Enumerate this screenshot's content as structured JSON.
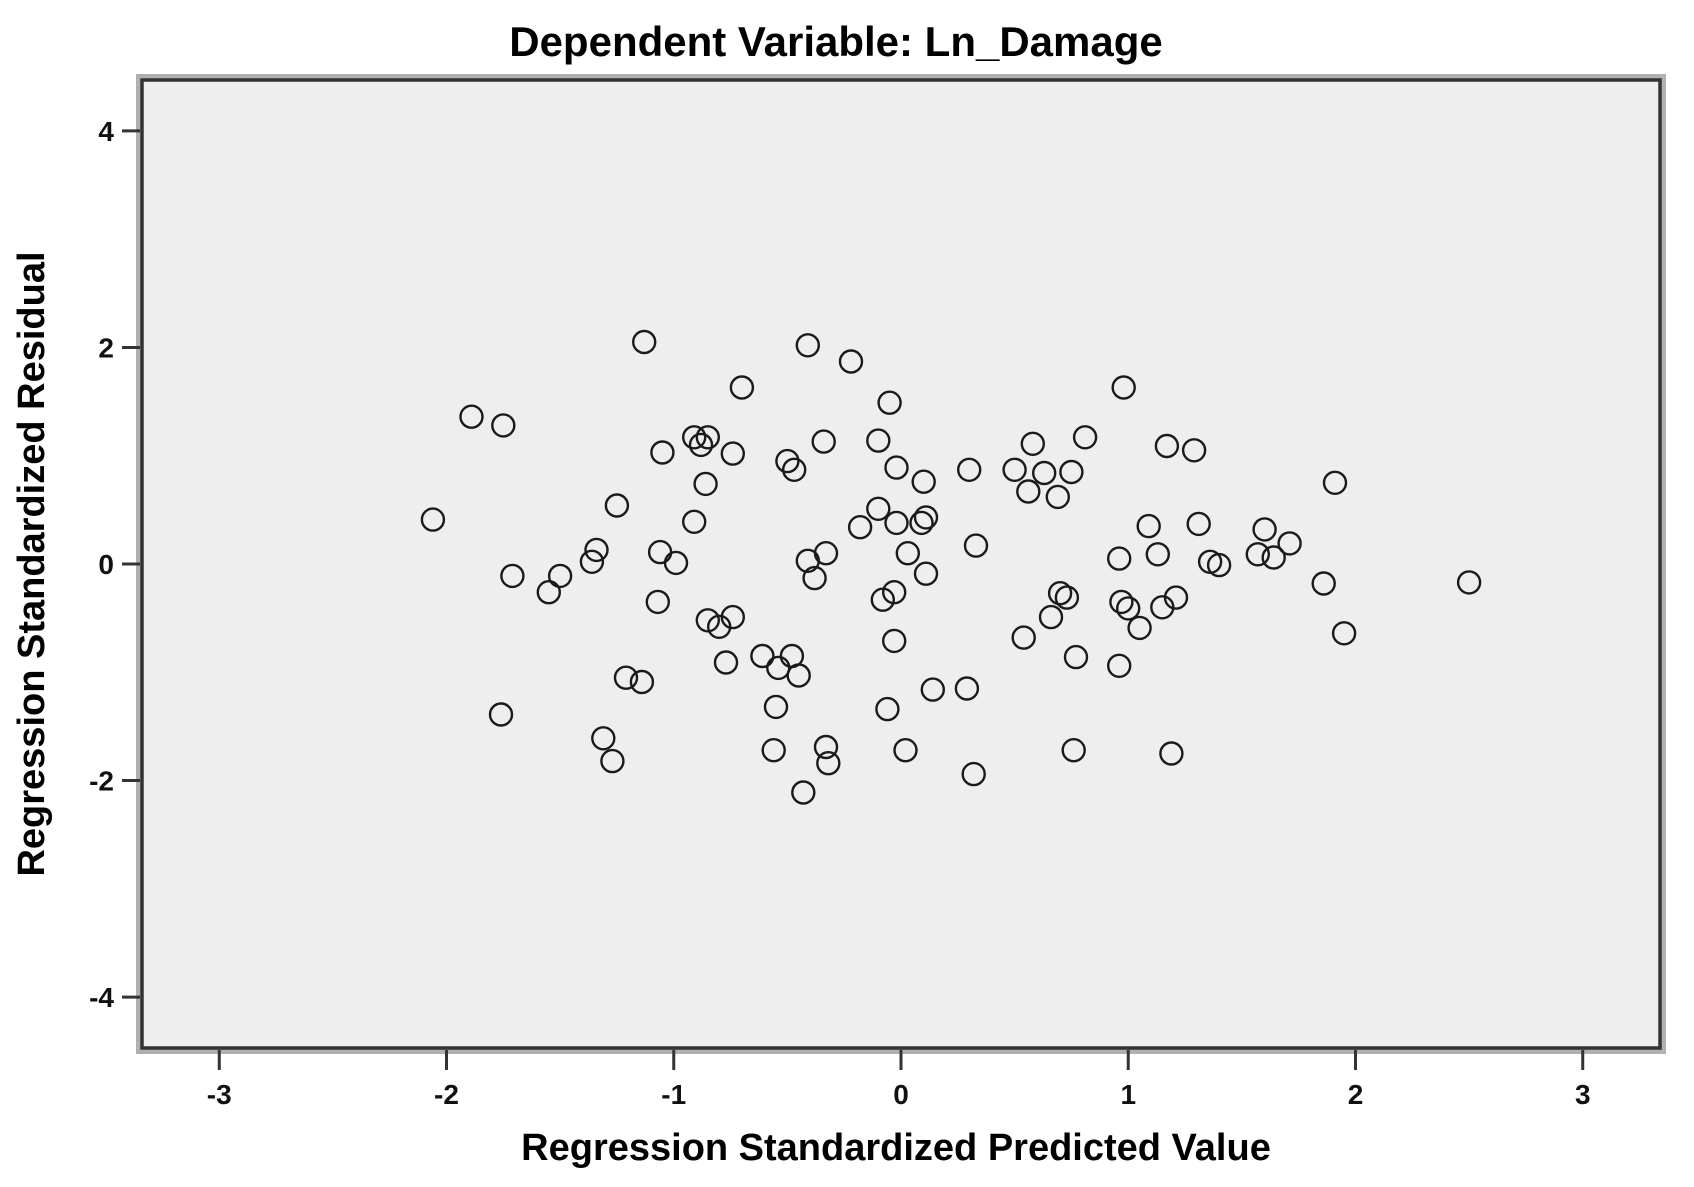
{
  "chart_data": {
    "type": "scatter",
    "title": "Dependent Variable: Ln_Damage",
    "xlabel": "Regression Standardized Predicted Value",
    "ylabel": "Regression Standardized Residual",
    "x_ticks": [
      -3,
      -2,
      -1,
      0,
      1,
      2,
      3
    ],
    "y_ticks": [
      -4,
      -2,
      0,
      2,
      4
    ],
    "xlim": [
      -3.34,
      3.34
    ],
    "ylim": [
      -4.47,
      4.47
    ],
    "grid": false,
    "legend": null,
    "marker": {
      "shape": "open-circle",
      "radius_px": 11,
      "stroke": "#1a1a1a",
      "stroke_width": 2.4
    },
    "plot_bg": "#eeeeee",
    "frame_color": "#333333",
    "frame_shadow_color": "#b0b0b0",
    "points": [
      [
        -1.13,
        2.05
      ],
      [
        -0.41,
        2.02
      ],
      [
        -0.22,
        1.87
      ],
      [
        -0.7,
        1.63
      ],
      [
        0.98,
        1.63
      ],
      [
        -0.05,
        1.49
      ],
      [
        -1.89,
        1.36
      ],
      [
        -1.75,
        1.28
      ],
      [
        -0.91,
        1.17
      ],
      [
        -0.85,
        1.17
      ],
      [
        0.81,
        1.17
      ],
      [
        -0.1,
        1.14
      ],
      [
        -0.34,
        1.13
      ],
      [
        0.58,
        1.11
      ],
      [
        -0.88,
        1.1
      ],
      [
        1.17,
        1.09
      ],
      [
        1.29,
        1.05
      ],
      [
        -1.05,
        1.03
      ],
      [
        -0.74,
        1.02
      ],
      [
        -0.5,
        0.95
      ],
      [
        -0.02,
        0.89
      ],
      [
        -0.47,
        0.87
      ],
      [
        0.3,
        0.87
      ],
      [
        0.5,
        0.87
      ],
      [
        0.75,
        0.85
      ],
      [
        0.63,
        0.84
      ],
      [
        0.1,
        0.76
      ],
      [
        1.91,
        0.75
      ],
      [
        -0.86,
        0.74
      ],
      [
        0.56,
        0.67
      ],
      [
        0.69,
        0.62
      ],
      [
        -1.25,
        0.54
      ],
      [
        -0.1,
        0.51
      ],
      [
        0.11,
        0.43
      ],
      [
        -2.06,
        0.41
      ],
      [
        -0.91,
        0.39
      ],
      [
        -0.02,
        0.38
      ],
      [
        0.09,
        0.38
      ],
      [
        1.31,
        0.37
      ],
      [
        1.09,
        0.35
      ],
      [
        -0.18,
        0.34
      ],
      [
        1.6,
        0.32
      ],
      [
        1.71,
        0.19
      ],
      [
        0.33,
        0.17
      ],
      [
        -1.34,
        0.13
      ],
      [
        -1.06,
        0.11
      ],
      [
        -0.33,
        0.1
      ],
      [
        0.03,
        0.1
      ],
      [
        1.13,
        0.09
      ],
      [
        1.57,
        0.09
      ],
      [
        1.64,
        0.06
      ],
      [
        0.96,
        0.05
      ],
      [
        -0.41,
        0.03
      ],
      [
        -1.36,
        0.02
      ],
      [
        1.36,
        0.02
      ],
      [
        -0.99,
        0.01
      ],
      [
        1.4,
        -0.01
      ],
      [
        -1.71,
        -0.11
      ],
      [
        -1.5,
        -0.11
      ],
      [
        0.11,
        -0.09
      ],
      [
        -0.38,
        -0.13
      ],
      [
        2.5,
        -0.17
      ],
      [
        1.86,
        -0.18
      ],
      [
        -1.55,
        -0.26
      ],
      [
        -0.03,
        -0.26
      ],
      [
        0.7,
        -0.27
      ],
      [
        0.73,
        -0.31
      ],
      [
        1.21,
        -0.31
      ],
      [
        -0.08,
        -0.33
      ],
      [
        -1.07,
        -0.35
      ],
      [
        0.97,
        -0.35
      ],
      [
        1.15,
        -0.4
      ],
      [
        1.0,
        -0.41
      ],
      [
        -0.74,
        -0.49
      ],
      [
        0.66,
        -0.49
      ],
      [
        -0.85,
        -0.52
      ],
      [
        -0.8,
        -0.58
      ],
      [
        1.05,
        -0.59
      ],
      [
        1.95,
        -0.64
      ],
      [
        0.54,
        -0.68
      ],
      [
        -0.03,
        -0.71
      ],
      [
        -0.61,
        -0.85
      ],
      [
        -0.48,
        -0.85
      ],
      [
        0.77,
        -0.86
      ],
      [
        -0.77,
        -0.91
      ],
      [
        -0.54,
        -0.96
      ],
      [
        0.96,
        -0.94
      ],
      [
        -0.45,
        -1.03
      ],
      [
        -1.21,
        -1.05
      ],
      [
        -1.14,
        -1.09
      ],
      [
        0.29,
        -1.15
      ],
      [
        0.14,
        -1.16
      ],
      [
        -0.55,
        -1.32
      ],
      [
        -0.06,
        -1.34
      ],
      [
        -1.76,
        -1.39
      ],
      [
        -1.31,
        -1.61
      ],
      [
        -0.33,
        -1.69
      ],
      [
        -0.56,
        -1.72
      ],
      [
        0.02,
        -1.72
      ],
      [
        0.76,
        -1.72
      ],
      [
        1.19,
        -1.75
      ],
      [
        -1.27,
        -1.82
      ],
      [
        -0.32,
        -1.84
      ],
      [
        0.32,
        -1.94
      ],
      [
        -0.43,
        -2.11
      ]
    ]
  }
}
